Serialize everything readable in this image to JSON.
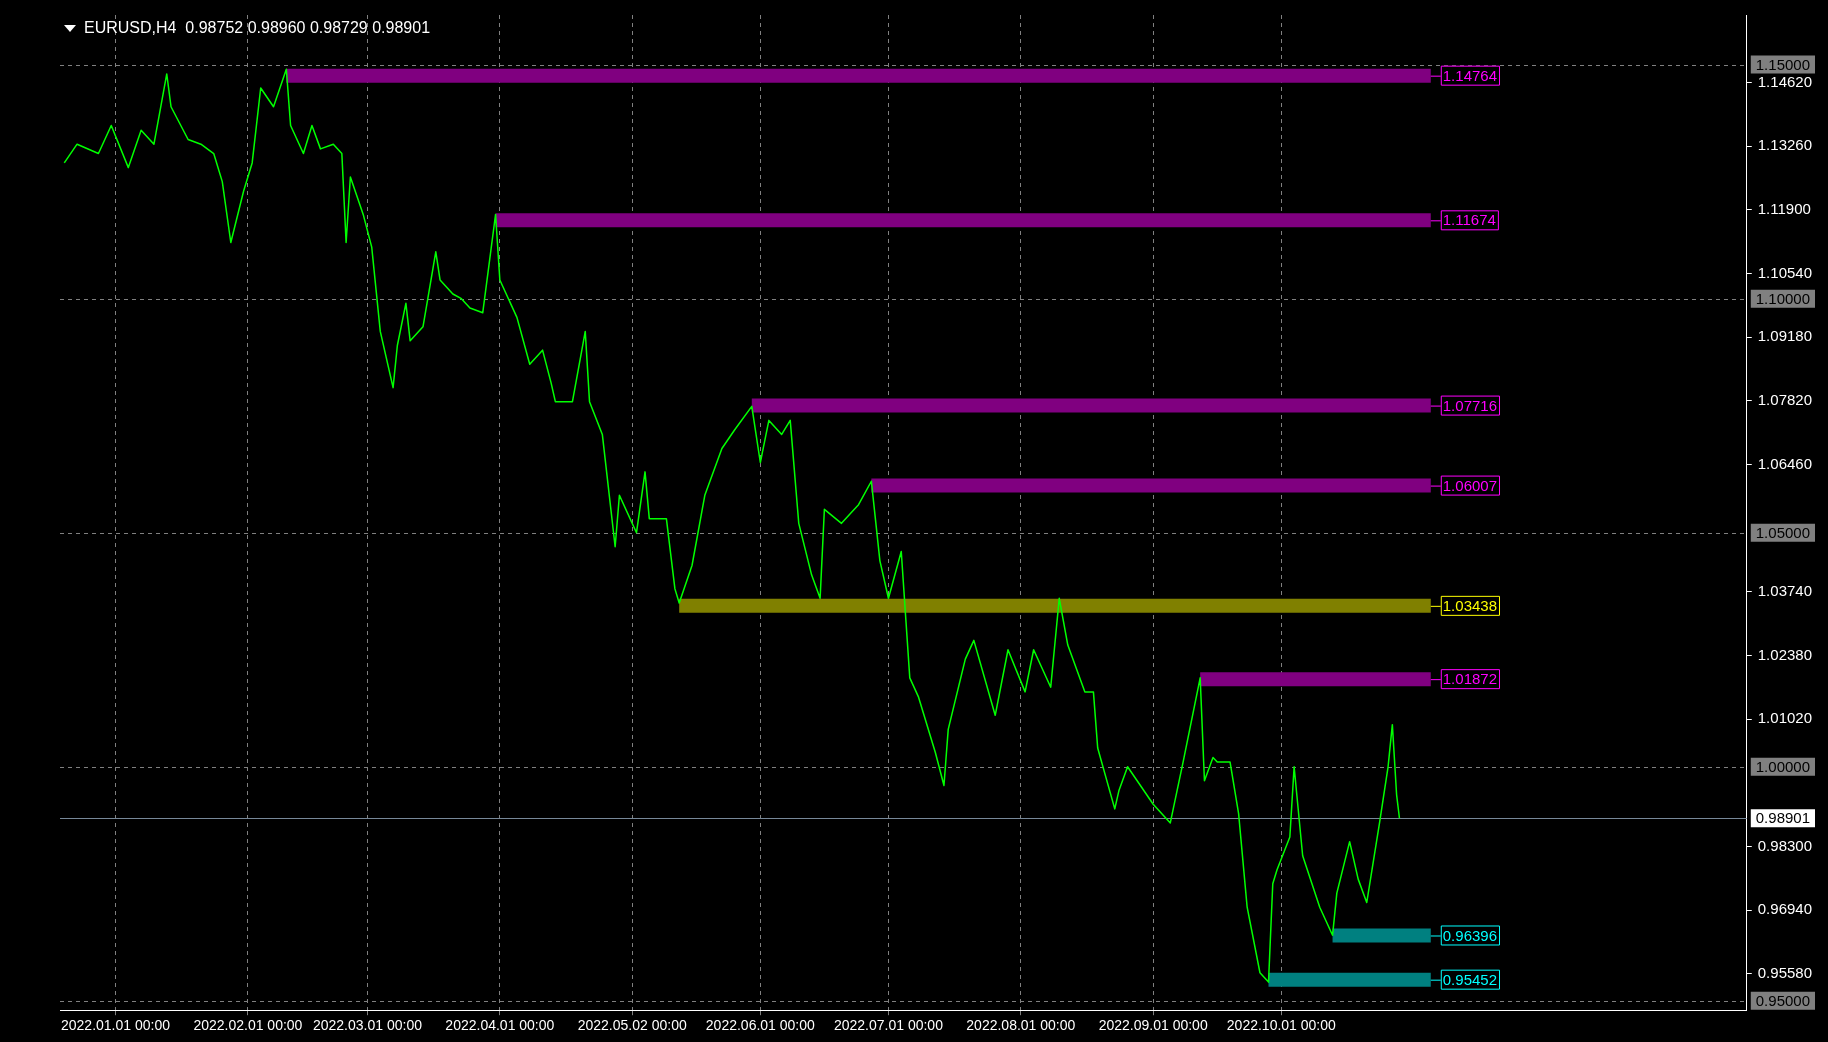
{
  "chart_data": {
    "type": "line",
    "title": "EURUSD,H4  0.98752 0.98960 0.98729 0.98901",
    "xlim": [
      "2021-12-19",
      "2023-01-18"
    ],
    "ylim": [
      0.948,
      1.1606
    ],
    "xticks": [
      {
        "value": "2022-01-01",
        "label": "2022.01.01 00:00"
      },
      {
        "value": "2022-02-01",
        "label": "2022.02.01 00:00"
      },
      {
        "value": "2022-03-01",
        "label": "2022.03.01 00:00"
      },
      {
        "value": "2022-04-01",
        "label": "2022.04.01 00:00"
      },
      {
        "value": "2022-05-02",
        "label": "2022.05.02 00:00"
      },
      {
        "value": "2022-06-01",
        "label": "2022.06.01 00:00"
      },
      {
        "value": "2022-07-01",
        "label": "2022.07.01 00:00"
      },
      {
        "value": "2022-08-01",
        "label": "2022.08.01 00:00"
      },
      {
        "value": "2022-09-01",
        "label": "2022.09.01 00:00"
      },
      {
        "value": "2022-10-01",
        "label": "2022.10.01 00:00"
      }
    ],
    "yticks": [
      {
        "value": 0.9558,
        "label": "0.95580"
      },
      {
        "value": 0.9694,
        "label": "0.96940"
      },
      {
        "value": 0.983,
        "label": "0.98300"
      },
      {
        "value": 1.0102,
        "label": "1.01020"
      },
      {
        "value": 1.0238,
        "label": "1.02380"
      },
      {
        "value": 1.0374,
        "label": "1.03740"
      },
      {
        "value": 1.0646,
        "label": "1.06460"
      },
      {
        "value": 1.0782,
        "label": "1.07820"
      },
      {
        "value": 1.0918,
        "label": "1.09180"
      },
      {
        "value": 1.1054,
        "label": "1.10540"
      },
      {
        "value": 1.119,
        "label": "1.11900"
      },
      {
        "value": 1.1326,
        "label": "1.13260"
      },
      {
        "value": 1.1462,
        "label": "1.14620"
      }
    ],
    "grid": "x",
    "marker": "none",
    "line_style": "solid",
    "ref_lines": [
      {
        "axis": "y",
        "value": 1.15,
        "label": "1.15000",
        "color": "#808080",
        "line_style": "dashed"
      },
      {
        "axis": "y",
        "value": 1.1,
        "label": "1.10000",
        "color": "#808080",
        "line_style": "dashed"
      },
      {
        "axis": "y",
        "value": 1.05,
        "label": "1.05000",
        "color": "#808080",
        "line_style": "dashed"
      },
      {
        "axis": "y",
        "value": 1.0,
        "label": "1.00000",
        "color": "#808080",
        "line_style": "dashed"
      },
      {
        "axis": "y",
        "value": 0.95,
        "label": "0.95000",
        "color": "#808080",
        "line_style": "dashed"
      },
      {
        "axis": "y",
        "value": 0.98901,
        "label": "0.98901",
        "color": "#778899",
        "line_style": "solid"
      }
    ],
    "series": [
      {
        "color": "#00ff00",
        "x": [
          "2021-12-20",
          "2021-12-23",
          "2021-12-28",
          "2021-12-31",
          "2022-01-04",
          "2022-01-07",
          "2022-01-10",
          "2022-01-13",
          "2022-01-14",
          "2022-01-18",
          "2022-01-21",
          "2022-01-24",
          "2022-01-26",
          "2022-01-28",
          "2022-01-31",
          "2022-02-02",
          "2022-02-04",
          "2022-02-07",
          "2022-02-10",
          "2022-02-11",
          "2022-02-14",
          "2022-02-16",
          "2022-02-18",
          "2022-02-21",
          "2022-02-23",
          "2022-02-24",
          "2022-02-25",
          "2022-02-28",
          "2022-03-02",
          "2022-03-04",
          "2022-03-07",
          "2022-03-08",
          "2022-03-10",
          "2022-03-11",
          "2022-03-14",
          "2022-03-17",
          "2022-03-18",
          "2022-03-21",
          "2022-03-23",
          "2022-03-25",
          "2022-03-28",
          "2022-03-31",
          "2022-04-01",
          "2022-04-05",
          "2022-04-08",
          "2022-04-11",
          "2022-04-13",
          "2022-04-14",
          "2022-04-18",
          "2022-04-21",
          "2022-04-22",
          "2022-04-25",
          "2022-04-28",
          "2022-04-29",
          "2022-05-03",
          "2022-05-05",
          "2022-05-06",
          "2022-05-10",
          "2022-05-12",
          "2022-05-13",
          "2022-05-16",
          "2022-05-19",
          "2022-05-23",
          "2022-05-26",
          "2022-05-30",
          "2022-06-01",
          "2022-06-03",
          "2022-06-06",
          "2022-06-08",
          "2022-06-10",
          "2022-06-13",
          "2022-06-15",
          "2022-06-16",
          "2022-06-20",
          "2022-06-24",
          "2022-06-27",
          "2022-06-29",
          "2022-07-01",
          "2022-07-04",
          "2022-07-06",
          "2022-07-08",
          "2022-07-12",
          "2022-07-14",
          "2022-07-15",
          "2022-07-19",
          "2022-07-21",
          "2022-07-26",
          "2022-07-29",
          "2022-08-02",
          "2022-08-04",
          "2022-08-08",
          "2022-08-10",
          "2022-08-12",
          "2022-08-16",
          "2022-08-18",
          "2022-08-19",
          "2022-08-23",
          "2022-08-24",
          "2022-08-26",
          "2022-08-29",
          "2022-09-01",
          "2022-09-05",
          "2022-09-08",
          "2022-09-12",
          "2022-09-13",
          "2022-09-15",
          "2022-09-16",
          "2022-09-19",
          "2022-09-21",
          "2022-09-23",
          "2022-09-26",
          "2022-09-28",
          "2022-09-29",
          "2022-09-30",
          "2022-10-03",
          "2022-10-04",
          "2022-10-06",
          "2022-10-10",
          "2022-10-13",
          "2022-10-14",
          "2022-10-17",
          "2022-10-19",
          "2022-10-21",
          "2022-10-24",
          "2022-10-26",
          "2022-10-27",
          "2022-10-28",
          "2022-10-28T16:00"
        ],
        "values": [
          1.129,
          1.133,
          1.131,
          1.137,
          1.128,
          1.136,
          1.133,
          1.148,
          1.141,
          1.134,
          1.133,
          1.131,
          1.125,
          1.112,
          1.123,
          1.129,
          1.145,
          1.141,
          1.149,
          1.137,
          1.131,
          1.137,
          1.132,
          1.133,
          1.131,
          1.112,
          1.126,
          1.118,
          1.111,
          1.093,
          1.081,
          1.09,
          1.099,
          1.091,
          1.094,
          1.11,
          1.104,
          1.101,
          1.1,
          1.098,
          1.097,
          1.118,
          1.104,
          1.096,
          1.086,
          1.089,
          1.082,
          1.078,
          1.078,
          1.093,
          1.078,
          1.071,
          1.047,
          1.058,
          1.05,
          1.063,
          1.053,
          1.053,
          1.038,
          1.035,
          1.043,
          1.058,
          1.068,
          1.072,
          1.077,
          1.065,
          1.074,
          1.071,
          1.074,
          1.052,
          1.041,
          1.036,
          1.055,
          1.052,
          1.056,
          1.061,
          1.044,
          1.036,
          1.046,
          1.019,
          1.015,
          1.003,
          0.996,
          1.008,
          1.023,
          1.027,
          1.011,
          1.025,
          1.016,
          1.025,
          1.017,
          1.036,
          1.026,
          1.016,
          1.016,
          1.004,
          0.991,
          0.995,
          1.0,
          0.996,
          0.992,
          0.988,
          1.001,
          1.019,
          0.997,
          1.002,
          1.001,
          1.001,
          0.99,
          0.97,
          0.956,
          0.954,
          0.975,
          0.978,
          0.985,
          1.0,
          0.981,
          0.97,
          0.964,
          0.973,
          0.984,
          0.976,
          0.971,
          0.988,
          1.0,
          1.009,
          0.994,
          0.989
        ]
      },
      {
        "color": "#800080",
        "x": [
          "2022-02-10",
          "2022-11-05"
        ],
        "values": [
          1.14764,
          1.14764
        ],
        "value_labels": [
          null,
          "1.14764"
        ]
      },
      {
        "color": "#800080",
        "x": [
          "2022-03-31",
          "2022-11-05"
        ],
        "values": [
          1.11674,
          1.11674
        ],
        "value_labels": [
          null,
          "1.11674"
        ]
      },
      {
        "color": "#800080",
        "x": [
          "2022-05-30",
          "2022-11-05"
        ],
        "values": [
          1.07716,
          1.07716
        ],
        "value_labels": [
          null,
          "1.07716"
        ]
      },
      {
        "color": "#800080",
        "x": [
          "2022-06-27",
          "2022-11-05"
        ],
        "values": [
          1.06007,
          1.06007
        ],
        "value_labels": [
          null,
          "1.06007"
        ]
      },
      {
        "color": "#808000",
        "x": [
          "2022-05-13",
          "2022-11-05"
        ],
        "values": [
          1.03438,
          1.03438
        ],
        "value_labels": [
          null,
          "1.03438"
        ]
      },
      {
        "color": "#800080",
        "x": [
          "2022-09-12",
          "2022-11-05"
        ],
        "values": [
          1.01872,
          1.01872
        ],
        "value_labels": [
          null,
          "1.01872"
        ]
      },
      {
        "color": "#008080",
        "x": [
          "2022-10-13",
          "2022-11-05"
        ],
        "values": [
          0.96396,
          0.96396
        ],
        "value_labels": [
          null,
          "0.96396"
        ]
      },
      {
        "color": "#008080",
        "x": [
          "2022-09-28",
          "2022-11-05"
        ],
        "values": [
          0.95452,
          0.95452
        ],
        "value_labels": [
          null,
          "0.95452"
        ]
      }
    ]
  }
}
